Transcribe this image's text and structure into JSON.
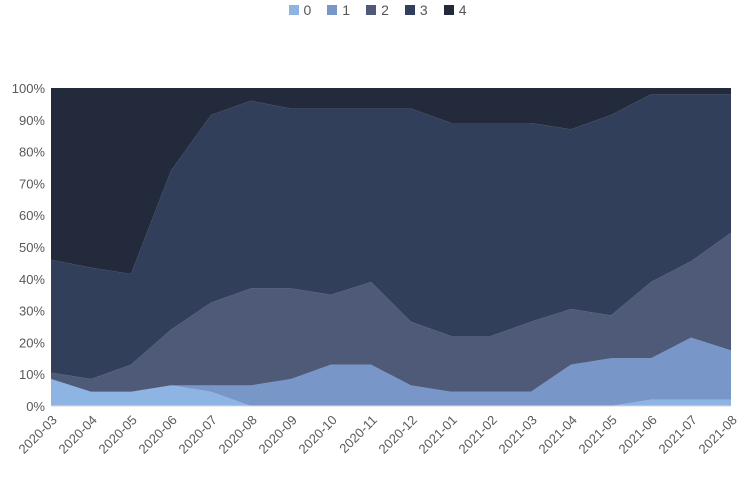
{
  "chart_data": {
    "type": "area",
    "stacked": "percent",
    "categories": [
      "2020-03",
      "2020-04",
      "2020-05",
      "2020-06",
      "2020-07",
      "2020-08",
      "2020-09",
      "2020-10",
      "2020-11",
      "2020-12",
      "2021-01",
      "2021-02",
      "2021-03",
      "2021-04",
      "2021-05",
      "2021-06",
      "2021-07",
      "2021-08"
    ],
    "series": [
      {
        "name": "0",
        "color": "#8db4e2",
        "values": [
          8.5,
          4.5,
          4.5,
          6.5,
          4.5,
          0,
          0,
          0,
          0,
          0,
          0,
          0,
          0,
          0,
          0,
          2,
          2,
          2
        ]
      },
      {
        "name": "1",
        "color": "#7896c8",
        "values": [
          0,
          0,
          0,
          0,
          2,
          6.5,
          8.5,
          13,
          13,
          6.5,
          4.5,
          4.5,
          4.5,
          13,
          15,
          13,
          19.5,
          15.5
        ]
      },
      {
        "name": "2",
        "color": "#4f5a78",
        "values": [
          2,
          4,
          8.5,
          17.5,
          26,
          30.5,
          28.5,
          22,
          26,
          20,
          17.5,
          17.5,
          22,
          17.5,
          13.5,
          24,
          24,
          37
        ]
      },
      {
        "name": "3",
        "color": "#323f5a",
        "values": [
          35.5,
          35,
          28.5,
          50,
          59,
          59,
          56.5,
          58.5,
          54.5,
          67,
          67,
          67,
          62.5,
          56.5,
          63,
          59,
          52.5,
          43.5
        ]
      },
      {
        "name": "4",
        "color": "#222a3c",
        "values": [
          54,
          56.5,
          58.5,
          26,
          8.5,
          4,
          6.5,
          6.5,
          6.5,
          6.5,
          11,
          11,
          11,
          13,
          8.5,
          2,
          2,
          2
        ]
      }
    ],
    "yticks": [
      "0%",
      "10%",
      "20%",
      "30%",
      "40%",
      "50%",
      "60%",
      "70%",
      "80%",
      "90%",
      "100%"
    ],
    "ylim": [
      0,
      100
    ],
    "grid": false,
    "legend": "top-center",
    "title": "",
    "xlabel": "",
    "ylabel": ""
  }
}
